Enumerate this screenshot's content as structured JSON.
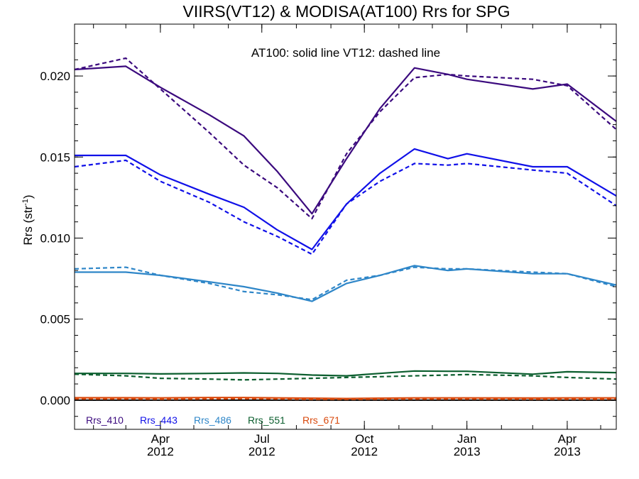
{
  "chart_data": {
    "type": "line",
    "title": "VIIRS(VT12) & MODISA(AT100)  Rrs for SPG",
    "annotation": "AT100: solid line   VT12: dashed line",
    "xlabel": "",
    "ylabel": "Rrs (str",
    "ylabel_superscript": "-1",
    "ylabel_suffix": ")",
    "x_range": [
      "2012-01-15",
      "2013-05-15"
    ],
    "ylim": [
      -0.0018,
      0.0232
    ],
    "y_ticks": [
      {
        "value": 0.0,
        "label": "0.000"
      },
      {
        "value": 0.005,
        "label": "0.005"
      },
      {
        "value": 0.01,
        "label": "0.010"
      },
      {
        "value": 0.015,
        "label": "0.015"
      },
      {
        "value": 0.02,
        "label": "0.020"
      }
    ],
    "x_ticks": [
      {
        "date": "2012-04-01",
        "month": "Apr",
        "year": "2012"
      },
      {
        "date": "2012-07-01",
        "month": "Jul",
        "year": "2012"
      },
      {
        "date": "2012-10-01",
        "month": "Oct",
        "year": "2012"
      },
      {
        "date": "2013-01-01",
        "month": "Jan",
        "year": "2013"
      },
      {
        "date": "2013-04-01",
        "month": "Apr",
        "year": "2013"
      }
    ],
    "grid": false,
    "legend_placement": "bottom-left",
    "series": [
      {
        "name": "Rrs_410",
        "color": "#3b0a7e",
        "at100": [
          [
            "2012-01-15",
            0.0204
          ],
          [
            "2012-03-01",
            0.0206
          ],
          [
            "2012-04-01",
            0.0193
          ],
          [
            "2012-05-15",
            0.0176
          ],
          [
            "2012-06-15",
            0.0163
          ],
          [
            "2012-07-15",
            0.0141
          ],
          [
            "2012-08-15",
            0.0115
          ],
          [
            "2012-09-15",
            0.0149
          ],
          [
            "2012-10-15",
            0.018
          ],
          [
            "2012-11-15",
            0.0205
          ],
          [
            "2012-12-15",
            0.0201
          ],
          [
            "2013-01-01",
            0.0198
          ],
          [
            "2013-03-01",
            0.0192
          ],
          [
            "2013-04-01",
            0.0195
          ],
          [
            "2013-05-15",
            0.0172
          ]
        ],
        "vt12": [
          [
            "2012-01-15",
            0.0204
          ],
          [
            "2012-03-01",
            0.0211
          ],
          [
            "2012-04-01",
            0.0192
          ],
          [
            "2012-05-15",
            0.0165
          ],
          [
            "2012-06-15",
            0.0145
          ],
          [
            "2012-07-15",
            0.0131
          ],
          [
            "2012-08-15",
            0.0112
          ],
          [
            "2012-09-15",
            0.0152
          ],
          [
            "2012-10-15",
            0.0178
          ],
          [
            "2012-11-15",
            0.0199
          ],
          [
            "2012-12-15",
            0.0201
          ],
          [
            "2013-01-01",
            0.02
          ],
          [
            "2013-03-01",
            0.0198
          ],
          [
            "2013-04-01",
            0.0194
          ],
          [
            "2013-05-15",
            0.0167
          ]
        ]
      },
      {
        "name": "Rrs_443",
        "color": "#1010e8",
        "at100": [
          [
            "2012-01-15",
            0.0151
          ],
          [
            "2012-03-01",
            0.0151
          ],
          [
            "2012-04-01",
            0.0139
          ],
          [
            "2012-05-15",
            0.0127
          ],
          [
            "2012-06-15",
            0.0119
          ],
          [
            "2012-07-15",
            0.0105
          ],
          [
            "2012-08-15",
            0.0093
          ],
          [
            "2012-09-15",
            0.0121
          ],
          [
            "2012-10-15",
            0.014
          ],
          [
            "2012-11-15",
            0.0155
          ],
          [
            "2012-12-15",
            0.0149
          ],
          [
            "2013-01-01",
            0.0152
          ],
          [
            "2013-03-01",
            0.0144
          ],
          [
            "2013-04-01",
            0.0144
          ],
          [
            "2013-05-15",
            0.0126
          ]
        ],
        "vt12": [
          [
            "2012-01-15",
            0.0144
          ],
          [
            "2012-03-01",
            0.0148
          ],
          [
            "2012-04-01",
            0.0135
          ],
          [
            "2012-05-15",
            0.0122
          ],
          [
            "2012-06-15",
            0.011
          ],
          [
            "2012-07-15",
            0.0101
          ],
          [
            "2012-08-15",
            0.009
          ],
          [
            "2012-09-15",
            0.0121
          ],
          [
            "2012-10-15",
            0.0135
          ],
          [
            "2012-11-15",
            0.0146
          ],
          [
            "2012-12-15",
            0.0145
          ],
          [
            "2013-01-01",
            0.0146
          ],
          [
            "2013-03-01",
            0.0142
          ],
          [
            "2013-04-01",
            0.014
          ],
          [
            "2013-05-15",
            0.012
          ]
        ]
      },
      {
        "name": "Rrs_486",
        "color": "#2e86c8",
        "at100": [
          [
            "2012-01-15",
            0.0079
          ],
          [
            "2012-03-01",
            0.0079
          ],
          [
            "2012-04-01",
            0.0077
          ],
          [
            "2012-05-15",
            0.0073
          ],
          [
            "2012-06-15",
            0.007
          ],
          [
            "2012-07-15",
            0.0066
          ],
          [
            "2012-08-15",
            0.0061
          ],
          [
            "2012-09-15",
            0.0072
          ],
          [
            "2012-10-15",
            0.0077
          ],
          [
            "2012-11-15",
            0.0083
          ],
          [
            "2012-12-15",
            0.008
          ],
          [
            "2013-01-01",
            0.0081
          ],
          [
            "2013-03-01",
            0.0078
          ],
          [
            "2013-04-01",
            0.0078
          ],
          [
            "2013-05-15",
            0.0071
          ]
        ],
        "vt12": [
          [
            "2012-01-15",
            0.0081
          ],
          [
            "2012-03-01",
            0.0082
          ],
          [
            "2012-04-01",
            0.0077
          ],
          [
            "2012-05-15",
            0.0072
          ],
          [
            "2012-06-15",
            0.0067
          ],
          [
            "2012-07-15",
            0.0065
          ],
          [
            "2012-08-15",
            0.0062
          ],
          [
            "2012-09-15",
            0.0074
          ],
          [
            "2012-10-15",
            0.0077
          ],
          [
            "2012-11-15",
            0.0082
          ],
          [
            "2012-12-15",
            0.0081
          ],
          [
            "2013-01-01",
            0.0081
          ],
          [
            "2013-03-01",
            0.0079
          ],
          [
            "2013-04-01",
            0.0078
          ],
          [
            "2013-05-15",
            0.007
          ]
        ]
      },
      {
        "name": "Rrs_551",
        "color": "#0b5e2e",
        "at100": [
          [
            "2012-01-15",
            0.00165
          ],
          [
            "2012-03-01",
            0.00165
          ],
          [
            "2012-04-01",
            0.00162
          ],
          [
            "2012-05-15",
            0.00165
          ],
          [
            "2012-06-15",
            0.00168
          ],
          [
            "2012-07-15",
            0.00165
          ],
          [
            "2012-08-15",
            0.00155
          ],
          [
            "2012-09-15",
            0.0015
          ],
          [
            "2012-10-15",
            0.00165
          ],
          [
            "2012-11-15",
            0.0018
          ],
          [
            "2012-12-15",
            0.00178
          ],
          [
            "2013-01-01",
            0.00178
          ],
          [
            "2013-03-01",
            0.0016
          ],
          [
            "2013-04-01",
            0.00175
          ],
          [
            "2013-05-15",
            0.0017
          ]
        ],
        "vt12": [
          [
            "2012-01-15",
            0.0016
          ],
          [
            "2012-03-01",
            0.0015
          ],
          [
            "2012-04-01",
            0.00135
          ],
          [
            "2012-05-15",
            0.0013
          ],
          [
            "2012-06-15",
            0.00125
          ],
          [
            "2012-07-15",
            0.0013
          ],
          [
            "2012-08-15",
            0.00135
          ],
          [
            "2012-09-15",
            0.0014
          ],
          [
            "2012-10-15",
            0.00145
          ],
          [
            "2012-11-15",
            0.0015
          ],
          [
            "2012-12-15",
            0.00155
          ],
          [
            "2013-01-01",
            0.00158
          ],
          [
            "2013-03-01",
            0.0015
          ],
          [
            "2013-04-01",
            0.0014
          ],
          [
            "2013-05-15",
            0.0013
          ]
        ]
      },
      {
        "name": "Rrs_671",
        "color": "#d94a0e",
        "at100": [
          [
            "2012-01-15",
            0.00015
          ],
          [
            "2012-03-01",
            0.00015
          ],
          [
            "2012-04-01",
            0.00014
          ],
          [
            "2012-05-15",
            0.00016
          ],
          [
            "2012-06-15",
            0.00016
          ],
          [
            "2012-07-15",
            0.00014
          ],
          [
            "2012-08-15",
            0.00012
          ],
          [
            "2012-09-15",
            0.0001
          ],
          [
            "2012-10-15",
            0.00012
          ],
          [
            "2012-11-15",
            0.00014
          ],
          [
            "2012-12-15",
            0.00014
          ],
          [
            "2013-01-01",
            0.00014
          ],
          [
            "2013-03-01",
            0.00013
          ],
          [
            "2013-04-01",
            0.00014
          ],
          [
            "2013-05-15",
            0.00014
          ]
        ],
        "vt12": [
          [
            "2012-01-15",
            8e-05
          ],
          [
            "2012-03-01",
            8e-05
          ],
          [
            "2012-04-01",
            6e-05
          ],
          [
            "2012-05-15",
            8e-05
          ],
          [
            "2012-06-15",
            9e-05
          ],
          [
            "2012-07-15",
            8e-05
          ],
          [
            "2012-08-15",
            5e-05
          ],
          [
            "2012-09-15",
            5e-05
          ],
          [
            "2012-10-15",
            6e-05
          ],
          [
            "2012-11-15",
            7e-05
          ],
          [
            "2012-12-15",
            7e-05
          ],
          [
            "2013-01-01",
            7e-05
          ],
          [
            "2013-03-01",
            6e-05
          ],
          [
            "2013-04-01",
            6e-05
          ],
          [
            "2013-05-15",
            6e-05
          ]
        ]
      }
    ]
  }
}
